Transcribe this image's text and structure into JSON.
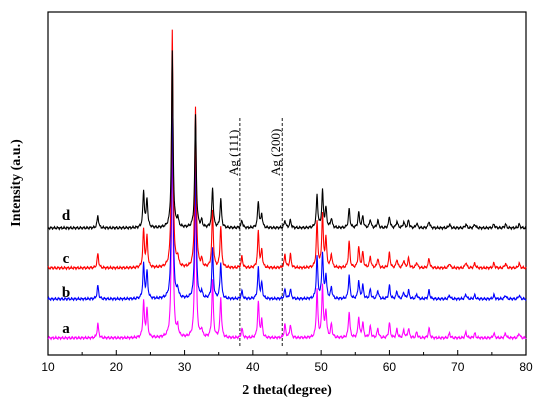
{
  "chart_data": {
    "type": "line",
    "title": "",
    "xlabel": "2 theta(degree)",
    "ylabel": "Intensity (a.u.)",
    "xlim": [
      10,
      80
    ],
    "xticks": [
      10,
      20,
      30,
      40,
      50,
      60,
      70,
      80
    ],
    "yticks_shown": false,
    "grid": false,
    "legend": "none",
    "annotations": [
      {
        "text": "Ag (111)",
        "x": 38.1,
        "style": "dashed-vertical"
      },
      {
        "text": "Ag (200)",
        "x": 44.3,
        "style": "dashed-vertical"
      }
    ],
    "series": [
      {
        "name": "a",
        "color": "#ff00ff",
        "baseline": 0,
        "peaks": [
          [
            17.3,
            15
          ],
          [
            24.0,
            38
          ],
          [
            24.5,
            30
          ],
          [
            28.2,
            235
          ],
          [
            29.0,
            10
          ],
          [
            31.6,
            170
          ],
          [
            32.5,
            8
          ],
          [
            34.1,
            60
          ],
          [
            35.3,
            42
          ],
          [
            38.4,
            10
          ],
          [
            40.8,
            38
          ],
          [
            41.3,
            18
          ],
          [
            44.7,
            14
          ],
          [
            45.5,
            14
          ],
          [
            49.4,
            50
          ],
          [
            50.2,
            54
          ],
          [
            50.7,
            28
          ],
          [
            51.5,
            14
          ],
          [
            54.1,
            28
          ],
          [
            55.5,
            22
          ],
          [
            56.1,
            16
          ],
          [
            57.2,
            12
          ],
          [
            58.3,
            10
          ],
          [
            60.0,
            16
          ],
          [
            61.1,
            9
          ],
          [
            62.1,
            8
          ],
          [
            62.8,
            10
          ],
          [
            64.0,
            6
          ],
          [
            65.8,
            10
          ],
          [
            68.8,
            5
          ],
          [
            71.2,
            6
          ],
          [
            72.5,
            5
          ],
          [
            75.3,
            5
          ],
          [
            77.0,
            5
          ],
          [
            79.0,
            5
          ]
        ]
      },
      {
        "name": "b",
        "color": "#0000ff",
        "baseline": 1,
        "peaks": [
          [
            17.3,
            14
          ],
          [
            24.0,
            36
          ],
          [
            24.5,
            28
          ],
          [
            28.2,
            215
          ],
          [
            29.0,
            9
          ],
          [
            31.6,
            150
          ],
          [
            32.5,
            7
          ],
          [
            34.1,
            52
          ],
          [
            35.3,
            38
          ],
          [
            38.4,
            8
          ],
          [
            40.8,
            32
          ],
          [
            41.3,
            16
          ],
          [
            44.7,
            10
          ],
          [
            45.5,
            10
          ],
          [
            49.4,
            44
          ],
          [
            50.2,
            48
          ],
          [
            50.7,
            24
          ],
          [
            51.5,
            12
          ],
          [
            54.1,
            25
          ],
          [
            55.5,
            19
          ],
          [
            56.1,
            14
          ],
          [
            57.2,
            10
          ],
          [
            58.3,
            9
          ],
          [
            60.0,
            14
          ],
          [
            61.1,
            8
          ],
          [
            62.1,
            7
          ],
          [
            62.8,
            9
          ],
          [
            64.0,
            5
          ],
          [
            65.8,
            9
          ],
          [
            68.8,
            4
          ],
          [
            71.2,
            5
          ],
          [
            72.5,
            4
          ],
          [
            75.3,
            4
          ],
          [
            77.0,
            4
          ],
          [
            79.0,
            4
          ]
        ]
      },
      {
        "name": "c",
        "color": "#ff0000",
        "baseline": 2,
        "peaks": [
          [
            17.3,
            15
          ],
          [
            24.0,
            40
          ],
          [
            24.5,
            32
          ],
          [
            28.2,
            250
          ],
          [
            29.0,
            10
          ],
          [
            31.6,
            168
          ],
          [
            32.5,
            8
          ],
          [
            34.1,
            60
          ],
          [
            35.3,
            44
          ],
          [
            38.4,
            12
          ],
          [
            40.8,
            38
          ],
          [
            41.3,
            18
          ],
          [
            44.7,
            14
          ],
          [
            45.5,
            14
          ],
          [
            49.4,
            48
          ],
          [
            50.2,
            56
          ],
          [
            50.7,
            30
          ],
          [
            51.5,
            14
          ],
          [
            54.1,
            28
          ],
          [
            55.5,
            22
          ],
          [
            56.1,
            16
          ],
          [
            57.2,
            12
          ],
          [
            58.3,
            10
          ],
          [
            60.0,
            16
          ],
          [
            61.1,
            9
          ],
          [
            62.1,
            8
          ],
          [
            62.8,
            10
          ],
          [
            64.0,
            6
          ],
          [
            65.8,
            10
          ],
          [
            68.8,
            5
          ],
          [
            71.2,
            6
          ],
          [
            72.5,
            5
          ],
          [
            75.3,
            5
          ],
          [
            77.0,
            5
          ],
          [
            79.0,
            5
          ]
        ]
      },
      {
        "name": "d",
        "color": "#000000",
        "baseline": 3,
        "peaks": [
          [
            17.3,
            13
          ],
          [
            24.0,
            38
          ],
          [
            24.5,
            30
          ],
          [
            28.2,
            185
          ],
          [
            29.0,
            9
          ],
          [
            31.6,
            118
          ],
          [
            32.5,
            7
          ],
          [
            34.1,
            42
          ],
          [
            35.3,
            30
          ],
          [
            38.4,
            8
          ],
          [
            40.8,
            28
          ],
          [
            41.3,
            14
          ],
          [
            44.7,
            8
          ],
          [
            45.5,
            8
          ],
          [
            49.4,
            34
          ],
          [
            50.2,
            38
          ],
          [
            50.7,
            20
          ],
          [
            51.5,
            10
          ],
          [
            54.1,
            20
          ],
          [
            55.5,
            16
          ],
          [
            56.1,
            12
          ],
          [
            57.2,
            9
          ],
          [
            58.3,
            8
          ],
          [
            60.0,
            12
          ],
          [
            61.1,
            7
          ],
          [
            62.1,
            6
          ],
          [
            62.8,
            8
          ],
          [
            64.0,
            5
          ],
          [
            65.8,
            7
          ],
          [
            68.8,
            4
          ],
          [
            71.2,
            4
          ],
          [
            72.5,
            4
          ],
          [
            75.3,
            4
          ],
          [
            77.0,
            4
          ],
          [
            79.0,
            4
          ]
        ]
      }
    ]
  }
}
